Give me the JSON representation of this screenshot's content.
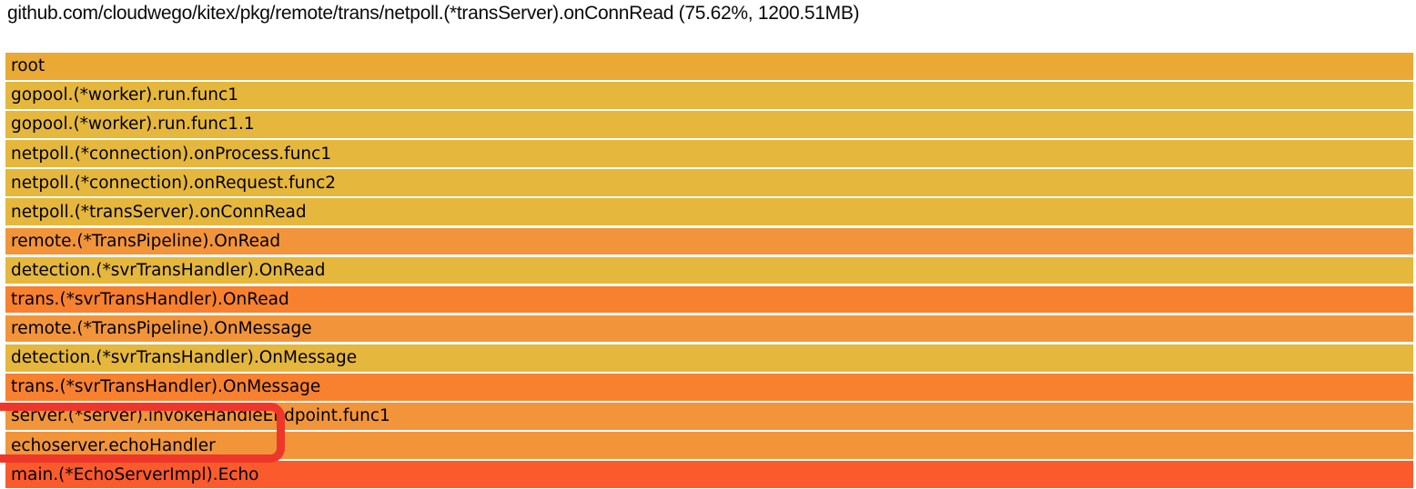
{
  "header": {
    "title": "github.com/cloudwego/kitex/pkg/remote/trans/netpoll.(*transServer).onConnRead (75.62%, 1200.51MB)"
  },
  "flamegraph": {
    "orientation": "icicle-top-down",
    "frames": [
      {
        "label": "root",
        "color": "#e9a934"
      },
      {
        "label": "gopool.(*worker).run.func1",
        "color": "#e5b73c"
      },
      {
        "label": "gopool.(*worker).run.func1.1",
        "color": "#e5b73c"
      },
      {
        "label": "netpoll.(*connection).onProcess.func1",
        "color": "#e5b73c"
      },
      {
        "label": "netpoll.(*connection).onRequest.func2",
        "color": "#e5b73c"
      },
      {
        "label": "netpoll.(*transServer).onConnRead",
        "color": "#e5b73c"
      },
      {
        "label": "remote.(*TransPipeline).OnRead",
        "color": "#f2953a"
      },
      {
        "label": "detection.(*svrTransHandler).OnRead",
        "color": "#e5b73c"
      },
      {
        "label": "trans.(*svrTransHandler).OnRead",
        "color": "#f8812f"
      },
      {
        "label": "remote.(*TransPipeline).OnMessage",
        "color": "#f2953a"
      },
      {
        "label": "detection.(*svrTransHandler).OnMessage",
        "color": "#e5b73c"
      },
      {
        "label": "trans.(*svrTransHandler).OnMessage",
        "color": "#f8812f"
      },
      {
        "label": "server.(*server).invokeHandleEndpoint.func1",
        "color": "#f2953a"
      },
      {
        "label": "echoserver.echoHandler",
        "color": "#f2953a"
      },
      {
        "label": "main.(*EchoServerImpl).Echo",
        "color": "#fb5a2d"
      }
    ],
    "annotation": {
      "type": "highlight-box",
      "color": "#ee372a",
      "highlighted_rows": [
        "server.(*server).invokeHandleEndpoint.func1",
        "echoserver.echoHandler"
      ]
    }
  },
  "chart_data": {
    "type": "flamegraph",
    "title": "github.com/cloudwego/kitex/pkg/remote/trans/netpoll.(*transServer).onConnRead (75.62%, 1200.51MB)",
    "selected_node": {
      "name": "github.com/cloudwego/kitex/pkg/remote/trans/netpoll.(*transServer).onConnRead",
      "percent": "75.62%",
      "value": "1200.51MB"
    },
    "stack_top_down": [
      "root",
      "gopool.(*worker).run.func1",
      "gopool.(*worker).run.func1.1",
      "netpoll.(*connection).onProcess.func1",
      "netpoll.(*connection).onRequest.func2",
      "netpoll.(*transServer).onConnRead",
      "remote.(*TransPipeline).OnRead",
      "detection.(*svrTransHandler).OnRead",
      "trans.(*svrTransHandler).OnRead",
      "remote.(*TransPipeline).OnMessage",
      "detection.(*svrTransHandler).OnMessage",
      "trans.(*svrTransHandler).OnMessage",
      "server.(*server).invokeHandleEndpoint.func1",
      "echoserver.echoHandler",
      "main.(*EchoServerImpl).Echo"
    ],
    "layout_hints": {
      "all_frames_full_width": true,
      "legend": "none",
      "grid": "off"
    }
  }
}
